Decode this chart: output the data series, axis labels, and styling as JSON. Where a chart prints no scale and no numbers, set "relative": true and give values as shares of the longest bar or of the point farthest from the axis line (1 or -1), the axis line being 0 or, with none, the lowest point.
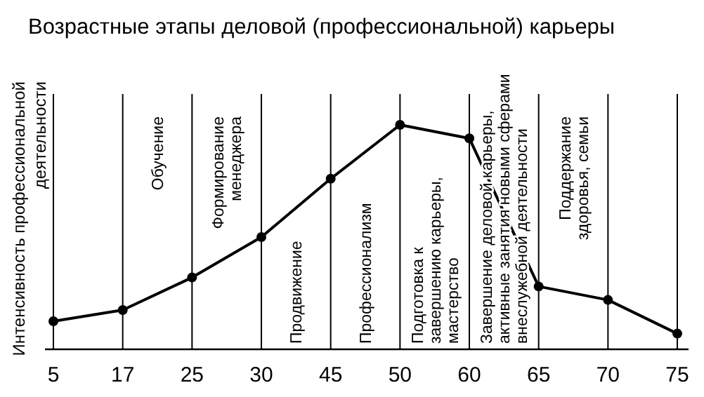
{
  "chart_data": {
    "type": "line",
    "title": "Возрастные этапы деловой (профессиональной) карьеры",
    "ylabel": "Интенсивность профессиональной деятельности",
    "relative": true,
    "categories": [
      "5",
      "17",
      "25",
      "30",
      "45",
      "50",
      "60",
      "65",
      "70",
      "75"
    ],
    "series": [
      {
        "color": "#000000",
        "values": [
          0.125,
          0.175,
          0.32,
          0.5,
          0.76,
          1.0,
          0.94,
          0.28,
          0.22,
          0.07
        ]
      }
    ],
    "annotations": [
      "Обучение",
      "Формирование менеджера",
      "Продвижение",
      "Профессионализм",
      "Подготовка к завершению карьеры, мастерство",
      "Завершение деловой карьеры, активные занятия новыми сферами внеслужебной деятельности",
      "Поддержание здоровья, семьи"
    ],
    "grid": "x",
    "marker": "circle",
    "line_style": "solid"
  }
}
